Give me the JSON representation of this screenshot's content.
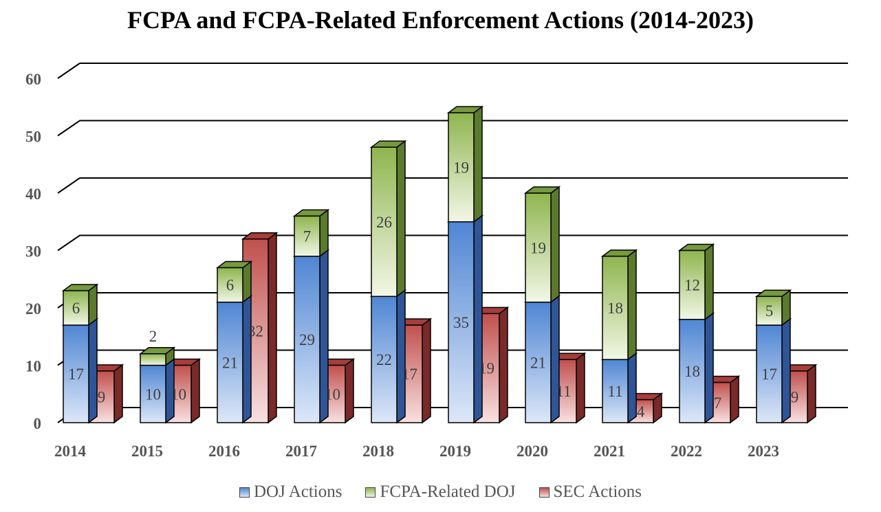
{
  "chart_data": {
    "type": "bar",
    "title": "FCPA and FCPA-Related Enforcement Actions (2014-2023)",
    "categories": [
      "2014",
      "2015",
      "2016",
      "2017",
      "2018",
      "2019",
      "2020",
      "2021",
      "2022",
      "2023"
    ],
    "series": [
      {
        "name": "DOJ Actions",
        "stack": "DOJ",
        "values": [
          17,
          10,
          21,
          29,
          22,
          35,
          21,
          11,
          18,
          17
        ]
      },
      {
        "name": "FCPA-Related DOJ",
        "stack": "DOJ",
        "values": [
          6,
          2,
          6,
          7,
          26,
          19,
          19,
          18,
          12,
          5
        ]
      },
      {
        "name": "SEC Actions",
        "stack": "SEC",
        "values": [
          9,
          10,
          32,
          10,
          17,
          19,
          11,
          4,
          7,
          9
        ]
      }
    ],
    "y_ticks": [
      "0",
      "10",
      "20",
      "30",
      "40",
      "50",
      "60"
    ],
    "ylim": [
      0,
      60
    ],
    "grid": true,
    "legend_position": "bottom",
    "colors": {
      "doj": "#4f86d3",
      "related": "#8fb54f",
      "sec": "#c0504d"
    }
  }
}
